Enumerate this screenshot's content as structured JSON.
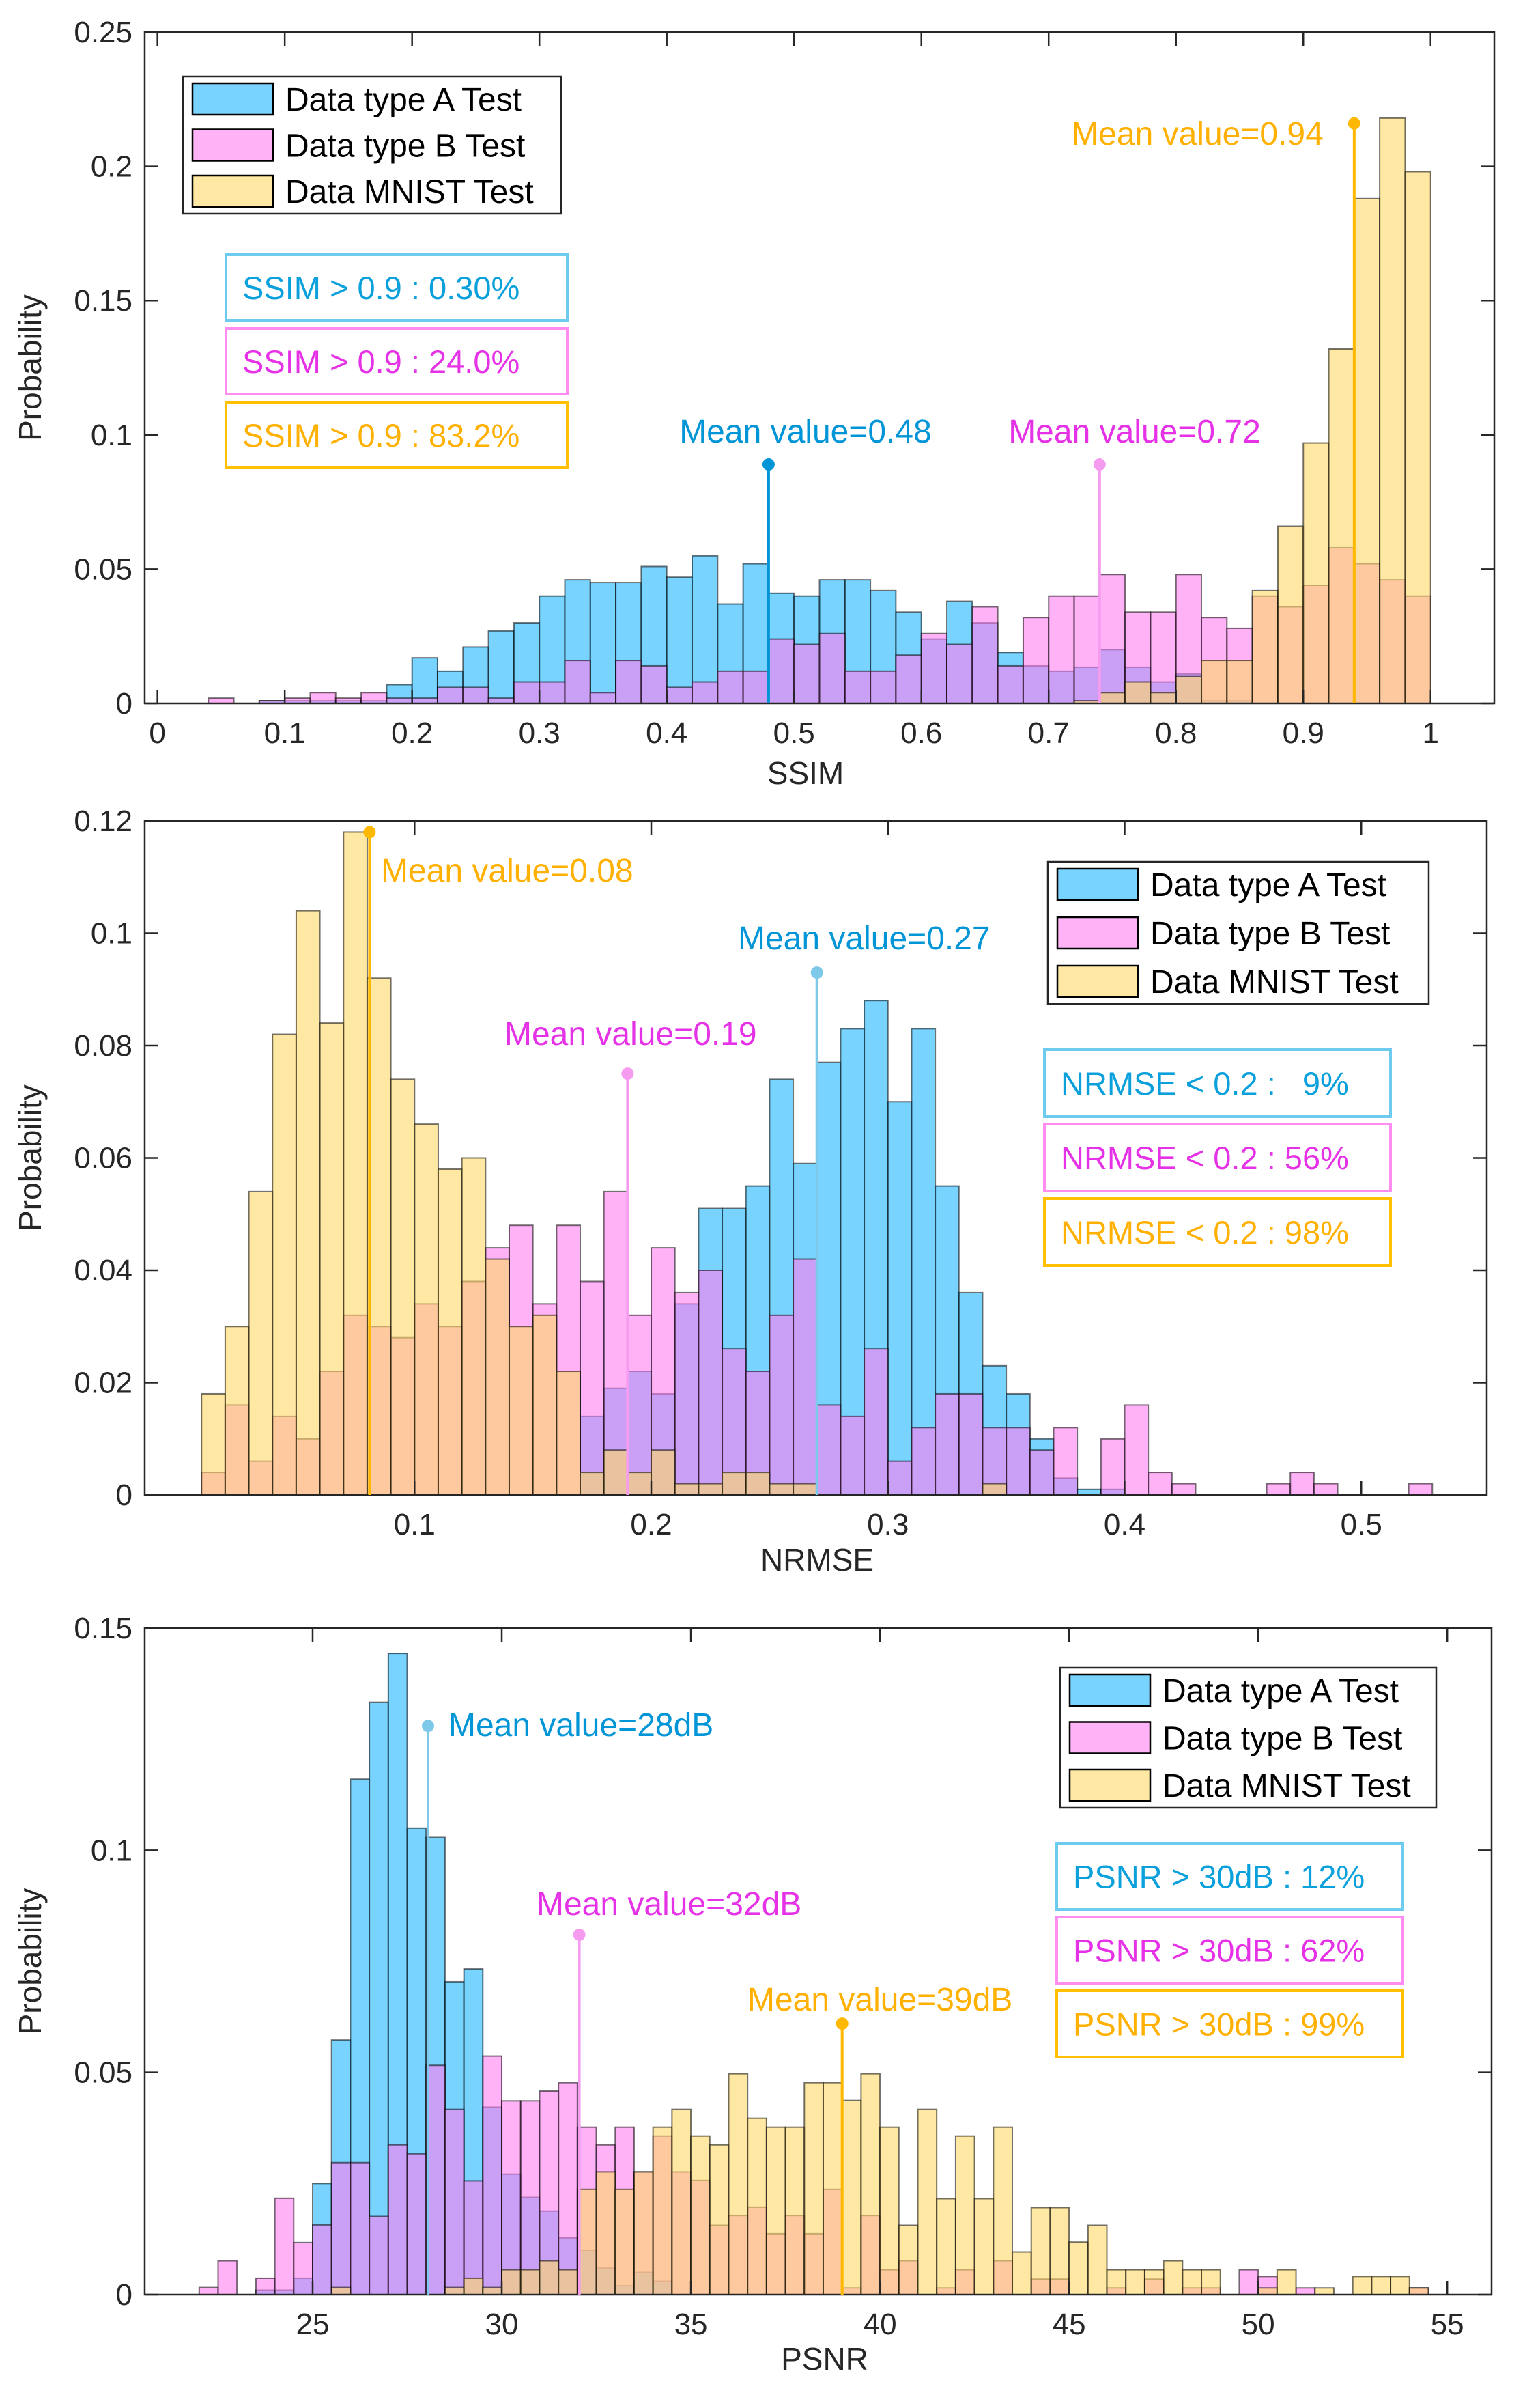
{
  "chart_data": [
    {
      "type": "bar",
      "subtype": "histogram",
      "xlabel": "SSIM",
      "ylabel": "Probability",
      "xlim": [
        -0.01,
        1.05
      ],
      "ylim": [
        0,
        0.25
      ],
      "xticks": [
        0,
        0.1,
        0.2,
        0.3,
        0.4,
        0.5,
        0.6,
        0.7,
        0.8,
        0.9,
        1
      ],
      "xtick_labels": [
        "0",
        "0.1",
        "0.2",
        "0.3",
        "0.4",
        "0.5",
        "0.6",
        "0.7",
        "0.8",
        "0.9",
        "1"
      ],
      "yticks": [
        0,
        0.05,
        0.1,
        0.15,
        0.2,
        0.25
      ],
      "ytick_labels": [
        "0",
        "0.05",
        "0.1",
        "0.15",
        "0.2",
        "0.25"
      ],
      "bin_start": 0,
      "bin_width": 0.02,
      "legend_placement": "top-left",
      "series": [
        {
          "name": "Data type A Test",
          "color": "#40c0ff",
          "values": [
            0,
            0,
            0,
            0,
            0.001,
            0.001,
            0.001,
            0.001,
            0.001,
            0.007,
            0.017,
            0.012,
            0.021,
            0.027,
            0.03,
            0.04,
            0.046,
            0.045,
            0.045,
            0.051,
            0.047,
            0.055,
            0.037,
            0.052,
            0.041,
            0.04,
            0.046,
            0.046,
            0.042,
            0.034,
            0.024,
            0.038,
            0.03,
            0.019,
            0.014,
            0.012,
            0.0135,
            0.02,
            0.0135,
            0.008,
            0.011,
            0.001,
            0.001,
            0,
            0,
            0,
            0,
            0,
            0,
            0
          ]
        },
        {
          "name": "Data type B Test",
          "color": "#ff7ff0",
          "values": [
            0,
            0,
            0.002,
            0,
            0.001,
            0.002,
            0.004,
            0.002,
            0.004,
            0.002,
            0.002,
            0.006,
            0.006,
            0.002,
            0.008,
            0.008,
            0.016,
            0.004,
            0.016,
            0.014,
            0.006,
            0.008,
            0.012,
            0.012,
            0.024,
            0.022,
            0.026,
            0.012,
            0.012,
            0.018,
            0.026,
            0.022,
            0.036,
            0.014,
            0.032,
            0.04,
            0.04,
            0.048,
            0.034,
            0.034,
            0.048,
            0.032,
            0.028,
            0.04,
            0.036,
            0.044,
            0.058,
            0.052,
            0.046,
            0.04
          ]
        },
        {
          "name": "Data MNIST Test",
          "color": "#ffd966",
          "values": [
            0,
            0,
            0,
            0,
            0,
            0,
            0,
            0,
            0,
            0,
            0,
            0,
            0,
            0,
            0,
            0,
            0,
            0,
            0,
            0,
            0,
            0,
            0,
            0,
            0,
            0,
            0,
            0,
            0,
            0,
            0,
            0,
            0,
            0,
            0,
            0,
            0.001,
            0.004,
            0.008,
            0.004,
            0.01,
            0.016,
            0.016,
            0.042,
            0.066,
            0.097,
            0.132,
            0.188,
            0.218,
            0.198
          ]
        }
      ],
      "mean_annotations": [
        {
          "text": "Mean value=0.48",
          "series": 0,
          "x": 0.48,
          "y": 0.089,
          "color": "#0095d6"
        },
        {
          "text": "Mean value=0.72",
          "series": 1,
          "x": 0.74,
          "y": 0.089,
          "color": "#e632e6"
        },
        {
          "text": "Mean value=0.94",
          "series": 2,
          "x": 0.94,
          "y": 0.216,
          "color": "#ffb000"
        }
      ],
      "stats": [
        {
          "text": "SSIM > 0.9 : 0.30%",
          "color": "#0aa0dc",
          "border": "#6ccbef"
        },
        {
          "text": "SSIM > 0.9 : 24.0%",
          "color": "#e632e6",
          "border": "#ff8cf0"
        },
        {
          "text": "SSIM > 0.9 : 83.2%",
          "color": "#ffb000",
          "border": "#ffc000"
        }
      ]
    },
    {
      "type": "bar",
      "subtype": "histogram",
      "xlabel": "NRMSE",
      "ylabel": "Probability",
      "xlim": [
        -0.014,
        0.553
      ],
      "ylim": [
        0,
        0.12
      ],
      "xticks": [
        0.1,
        0.2,
        0.3,
        0.4,
        0.5
      ],
      "xtick_labels": [
        "0.1",
        "0.2",
        "0.3",
        "0.4",
        "0.5"
      ],
      "yticks": [
        0,
        0.02,
        0.04,
        0.06,
        0.08,
        0.1,
        0.12
      ],
      "ytick_labels": [
        "0",
        "0.02",
        "0.04",
        "0.06",
        "0.08",
        "0.1",
        "0.12"
      ],
      "bin_start": 0.01,
      "bin_width": 0.01,
      "legend_placement": "top-right",
      "series": [
        {
          "name": "Data type A Test",
          "color": "#40c0ff",
          "values": [
            0,
            0,
            0,
            0,
            0,
            0,
            0,
            0,
            0,
            0,
            0,
            0,
            0,
            0,
            0,
            0,
            0.014,
            0.019,
            0.022,
            0.018,
            0.034,
            0.051,
            0.051,
            0.055,
            0.074,
            0.059,
            0.077,
            0.083,
            0.088,
            0.07,
            0.083,
            0.055,
            0.036,
            0.023,
            0.018,
            0.01,
            0.003,
            0.001,
            0.001,
            0,
            0,
            0,
            0,
            0,
            0,
            0,
            0,
            0,
            0,
            0,
            0,
            0
          ]
        },
        {
          "name": "Data type B Test",
          "color": "#ff7ff0",
          "values": [
            0.004,
            0.016,
            0.006,
            0.014,
            0.01,
            0.022,
            0.032,
            0.03,
            0.028,
            0.034,
            0.03,
            0.038,
            0.044,
            0.048,
            0.034,
            0.048,
            0.038,
            0.054,
            0.032,
            0.044,
            0.036,
            0.04,
            0.026,
            0.022,
            0.032,
            0.042,
            0.016,
            0.014,
            0.026,
            0.006,
            0.012,
            0.018,
            0.018,
            0.012,
            0.012,
            0.008,
            0.012,
            0,
            0.01,
            0.016,
            0.004,
            0.002,
            0,
            0,
            0,
            0.002,
            0.004,
            0.002,
            0,
            0,
            0,
            0.002
          ]
        },
        {
          "name": "Data MNIST Test",
          "color": "#ffd966",
          "values": [
            0.018,
            0.03,
            0.054,
            0.082,
            0.104,
            0.084,
            0.118,
            0.092,
            0.074,
            0.066,
            0.058,
            0.06,
            0.042,
            0.03,
            0.032,
            0.022,
            0.004,
            0.008,
            0.004,
            0.008,
            0.002,
            0.002,
            0.004,
            0.004,
            0.002,
            0.002,
            0,
            0,
            0,
            0,
            0,
            0,
            0,
            0.002,
            0,
            0,
            0,
            0,
            0,
            0,
            0,
            0,
            0,
            0,
            0,
            0,
            0,
            0,
            0,
            0,
            0,
            0
          ]
        }
      ],
      "mean_annotations": [
        {
          "text": "Mean value=0.27",
          "series": 0,
          "x": 0.27,
          "y": 0.093,
          "color": "#0095d6"
        },
        {
          "text": "Mean value=0.19",
          "series": 1,
          "x": 0.19,
          "y": 0.075,
          "color": "#e632e6"
        },
        {
          "text": "Mean value=0.08",
          "series": 2,
          "x": 0.081,
          "y": 0.118,
          "color": "#ffb000"
        }
      ],
      "stats": [
        {
          "text": "NRMSE < 0.2 :   9%",
          "color": "#0aa0dc",
          "border": "#6ccbef"
        },
        {
          "text": "NRMSE < 0.2 : 56%",
          "color": "#e632e6",
          "border": "#ff8cf0"
        },
        {
          "text": "NRMSE < 0.2 : 98%",
          "color": "#ffb000",
          "border": "#ffc000"
        }
      ]
    },
    {
      "type": "bar",
      "subtype": "histogram",
      "xlabel": "PSNR",
      "ylabel": "Probability",
      "xlim": [
        20.56,
        56.17
      ],
      "ylim": [
        0,
        0.15
      ],
      "xticks": [
        25,
        30,
        35,
        40,
        45,
        50,
        55
      ],
      "xtick_labels": [
        "25",
        "30",
        "35",
        "40",
        "45",
        "50",
        "55"
      ],
      "yticks": [
        0,
        0.05,
        0.1,
        0.15
      ],
      "ytick_labels": [
        "0",
        "0.05",
        "0.1",
        "0.15"
      ],
      "bin_start": 22,
      "bin_width": 0.5,
      "legend_placement": "top-right",
      "series": [
        {
          "name": "Data type A Test",
          "color": "#40c0ff",
          "values": [
            0,
            0,
            0,
            0.001,
            0.001,
            0.0037,
            0.025,
            0.0573,
            0.116,
            0.1333,
            0.1443,
            0.105,
            0.1029,
            0.0704,
            0.0733,
            0.0422,
            0.0271,
            0.0219,
            0.0188,
            0.0128,
            0.01,
            0.006,
            0.002,
            0.005,
            0.003,
            0,
            0,
            0,
            0,
            0,
            0,
            0,
            0,
            0,
            0,
            0,
            0,
            0,
            0,
            0,
            0,
            0,
            0,
            0,
            0,
            0,
            0,
            0,
            0,
            0,
            0,
            0,
            0,
            0,
            0,
            0,
            0,
            0,
            0,
            0,
            0,
            0,
            0,
            0,
            0
          ]
        },
        {
          "name": "Data type B Test",
          "color": "#ff7ff0",
          "values": [
            0.0016,
            0.0076,
            0,
            0.0037,
            0.0217,
            0.0117,
            0.0157,
            0.0297,
            0.0297,
            0.0176,
            0.0337,
            0.0317,
            0.0516,
            0.0417,
            0.0256,
            0.0537,
            0.0436,
            0.0436,
            0.0458,
            0.0477,
            0.0377,
            0.0337,
            0.0377,
            0.0276,
            0.0357,
            0.0276,
            0.0257,
            0.0156,
            0.0178,
            0.0197,
            0.0137,
            0.0178,
            0.0137,
            0.0237,
            0.0015,
            0.0178,
            0.0056,
            0.0076,
            0,
            0.0015,
            0.0056,
            0,
            0.0076,
            0,
            0.0035,
            0.0035,
            0,
            0,
            0.0015,
            0,
            0.0035,
            0,
            0.0015,
            0.0015,
            0,
            0.0056,
            0.0041,
            0,
            0.0015,
            0,
            0,
            0,
            0,
            0,
            0.0015
          ]
        },
        {
          "name": "Data MNIST Test",
          "color": "#ffd966",
          "values": [
            0,
            0,
            0,
            0,
            0,
            0,
            0,
            0.0016,
            0,
            0,
            0,
            0,
            0,
            0.0016,
            0.0037,
            0.0016,
            0.0056,
            0.0056,
            0.0076,
            0.0056,
            0.0237,
            0.0276,
            0.0237,
            0.0276,
            0.0377,
            0.0417,
            0.0357,
            0.0337,
            0.0497,
            0.0397,
            0.0377,
            0.0377,
            0.0477,
            0.0477,
            0.0437,
            0.0497,
            0.0377,
            0.0156,
            0.0417,
            0.0216,
            0.0357,
            0.0216,
            0.0377,
            0.0096,
            0.0196,
            0.0196,
            0.0118,
            0.0156,
            0.0056,
            0.0056,
            0.0056,
            0.0076,
            0.0056,
            0.0056,
            0,
            0,
            0.0015,
            0.0056,
            0,
            0.0015,
            0,
            0.0041,
            0.0041,
            0.0041,
            0.0015
          ]
        }
      ],
      "mean_annotations": [
        {
          "text": "Mean value=28dB",
          "series": 0,
          "x": 28.05,
          "y": 0.128,
          "color": "#0095d6"
        },
        {
          "text": "Mean value=32dB",
          "series": 1,
          "x": 32.05,
          "y": 0.081,
          "color": "#e632e6"
        },
        {
          "text": "Mean value=39dB",
          "series": 2,
          "x": 39.0,
          "y": 0.061,
          "color": "#ffb000"
        }
      ],
      "stats": [
        {
          "text": "PSNR > 30dB : 12%",
          "color": "#0aa0dc",
          "border": "#6ccbef"
        },
        {
          "text": "PSNR > 30dB : 62%",
          "color": "#e632e6",
          "border": "#ff8cf0"
        },
        {
          "text": "PSNR > 30dB : 99%",
          "color": "#ffb000",
          "border": "#ffc000"
        }
      ]
    }
  ]
}
